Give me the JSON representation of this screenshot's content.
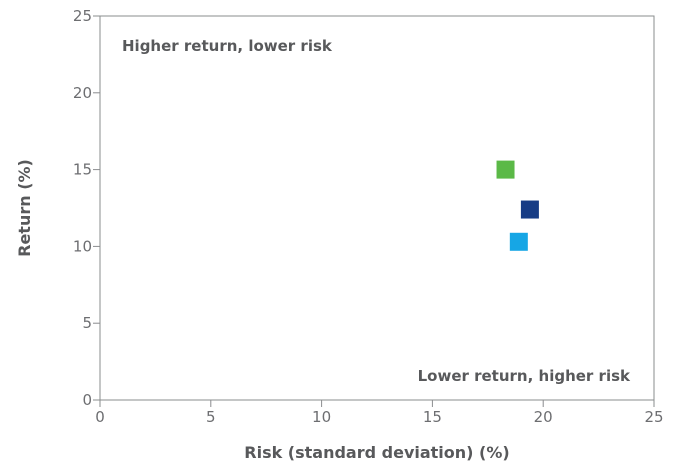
{
  "chart_data": {
    "type": "scatter",
    "title": "",
    "xlabel": "Risk (standard deviation) (%)",
    "ylabel": "Return (%)",
    "xlim": [
      0,
      25
    ],
    "ylim": [
      0,
      25
    ],
    "x_ticks": [
      "0",
      "5",
      "10",
      "15",
      "20",
      "25"
    ],
    "y_ticks": [
      "0",
      "5",
      "10",
      "15",
      "20",
      "25"
    ],
    "grid": false,
    "legend": "none",
    "marker": "square",
    "points": [
      {
        "x": 18.3,
        "y": 15.0,
        "color": "#5bb947"
      },
      {
        "x": 19.4,
        "y": 12.4,
        "color": "#173c85"
      },
      {
        "x": 18.9,
        "y": 10.3,
        "color": "#16a6e5"
      }
    ],
    "annotations": [
      {
        "text": "Higher return, lower risk",
        "position": "top-left"
      },
      {
        "text": "Lower return, higher risk",
        "position": "bottom-right"
      }
    ]
  }
}
